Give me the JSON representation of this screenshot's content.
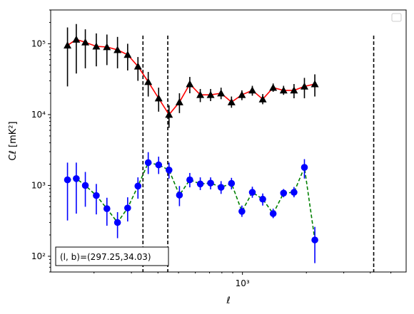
{
  "chart_data": {
    "type": "scatter",
    "xlabel": "ℓ",
    "ylabel": "Cℓ  [mK²]",
    "xscale": "log",
    "yscale": "log",
    "xlim": [
      125,
      5900
    ],
    "ylim": [
      60,
      300000
    ],
    "x_tick_labels": [
      {
        "value": 1000,
        "label": "10³"
      }
    ],
    "y_tick_labels": [
      {
        "value": 100,
        "label": "10²"
      },
      {
        "value": 1000,
        "label": "10³"
      },
      {
        "value": 10000,
        "label": "10⁴"
      },
      {
        "value": 100000,
        "label": "10⁵"
      }
    ],
    "grid": false,
    "legend": {
      "placement": "top-right",
      "entries": []
    },
    "annotation": {
      "text": "(l, b)=(297.25,34.03)",
      "placement": "bottom-left"
    },
    "vlines": [
      {
        "x": 340
      },
      {
        "x": 445
      },
      {
        "x": 4150
      }
    ],
    "series": [
      {
        "line_color": "#ff0000",
        "line_style": "solid",
        "marker": "triangle",
        "marker_color": "#000000",
        "errorbar_color": "#000000",
        "points": [
          {
            "x": 150,
            "y": 95000,
            "lo": 25000,
            "hi": 170000
          },
          {
            "x": 165,
            "y": 115000,
            "lo": 38000,
            "hi": 190000
          },
          {
            "x": 182,
            "y": 105000,
            "lo": 45000,
            "hi": 160000
          },
          {
            "x": 205,
            "y": 92000,
            "lo": 48000,
            "hi": 140000
          },
          {
            "x": 230,
            "y": 90000,
            "lo": 50000,
            "hi": 135000
          },
          {
            "x": 258,
            "y": 82000,
            "lo": 45000,
            "hi": 125000
          },
          {
            "x": 288,
            "y": 70000,
            "lo": 42000,
            "hi": 100000
          },
          {
            "x": 322,
            "y": 48000,
            "lo": 30000,
            "hi": 65000
          },
          {
            "x": 360,
            "y": 29000,
            "lo": 18000,
            "hi": 40000
          },
          {
            "x": 403,
            "y": 17000,
            "lo": 11000,
            "hi": 24000
          },
          {
            "x": 451,
            "y": 10000,
            "lo": 6500,
            "hi": 13500
          },
          {
            "x": 505,
            "y": 15000,
            "lo": 10500,
            "hi": 20000
          },
          {
            "x": 565,
            "y": 27000,
            "lo": 20000,
            "hi": 34000
          },
          {
            "x": 633,
            "y": 19000,
            "lo": 15000,
            "hi": 23000
          },
          {
            "x": 708,
            "y": 19000,
            "lo": 15500,
            "hi": 23000
          },
          {
            "x": 793,
            "y": 20000,
            "lo": 16500,
            "hi": 24000
          },
          {
            "x": 888,
            "y": 15000,
            "lo": 12500,
            "hi": 18000
          },
          {
            "x": 994,
            "y": 19000,
            "lo": 16000,
            "hi": 22000
          },
          {
            "x": 1113,
            "y": 22000,
            "lo": 18500,
            "hi": 25500
          },
          {
            "x": 1246,
            "y": 16500,
            "lo": 14000,
            "hi": 19500
          },
          {
            "x": 1395,
            "y": 24000,
            "lo": 21000,
            "hi": 27500
          },
          {
            "x": 1562,
            "y": 22000,
            "lo": 19000,
            "hi": 25500
          },
          {
            "x": 1749,
            "y": 22000,
            "lo": 17000,
            "hi": 27000
          },
          {
            "x": 1958,
            "y": 25000,
            "lo": 17000,
            "hi": 33000
          },
          {
            "x": 2192,
            "y": 27000,
            "lo": 18000,
            "hi": 37000
          }
        ]
      },
      {
        "line_color": "#008000",
        "line_style": "dashed",
        "marker": "circle",
        "marker_color": "#0000ff",
        "errorbar_color": "#0000ff",
        "points": [
          {
            "x": 150,
            "y": 1200,
            "lo": 320,
            "hi": 2100
          },
          {
            "x": 165,
            "y": 1250,
            "lo": 400,
            "hi": 2100
          },
          {
            "x": 182,
            "y": 1000,
            "lo": 500,
            "hi": 1550
          },
          {
            "x": 205,
            "y": 720,
            "lo": 390,
            "hi": 1050
          },
          {
            "x": 230,
            "y": 470,
            "lo": 270,
            "hi": 670
          },
          {
            "x": 258,
            "y": 300,
            "lo": 180,
            "hi": 420
          },
          {
            "x": 288,
            "y": 480,
            "lo": 310,
            "hi": 680
          },
          {
            "x": 322,
            "y": 980,
            "lo": 650,
            "hi": 1300
          },
          {
            "x": 360,
            "y": 2100,
            "lo": 1450,
            "hi": 2950
          },
          {
            "x": 403,
            "y": 1950,
            "lo": 1450,
            "hi": 2550
          },
          {
            "x": 451,
            "y": 1650,
            "lo": 1250,
            "hi": 2100
          },
          {
            "x": 505,
            "y": 730,
            "lo": 510,
            "hi": 980
          },
          {
            "x": 565,
            "y": 1200,
            "lo": 940,
            "hi": 1500
          },
          {
            "x": 633,
            "y": 1050,
            "lo": 860,
            "hi": 1300
          },
          {
            "x": 708,
            "y": 1080,
            "lo": 880,
            "hi": 1300
          },
          {
            "x": 793,
            "y": 940,
            "lo": 760,
            "hi": 1150
          },
          {
            "x": 888,
            "y": 1070,
            "lo": 880,
            "hi": 1280
          },
          {
            "x": 994,
            "y": 430,
            "lo": 360,
            "hi": 520
          },
          {
            "x": 1113,
            "y": 800,
            "lo": 670,
            "hi": 960
          },
          {
            "x": 1246,
            "y": 640,
            "lo": 520,
            "hi": 770
          },
          {
            "x": 1395,
            "y": 400,
            "lo": 345,
            "hi": 470
          },
          {
            "x": 1562,
            "y": 780,
            "lo": 680,
            "hi": 890
          },
          {
            "x": 1749,
            "y": 800,
            "lo": 680,
            "hi": 950
          },
          {
            "x": 1958,
            "y": 1800,
            "lo": 1250,
            "hi": 2350
          },
          {
            "x": 2192,
            "y": 170,
            "lo": 80,
            "hi": 260
          }
        ]
      }
    ]
  }
}
